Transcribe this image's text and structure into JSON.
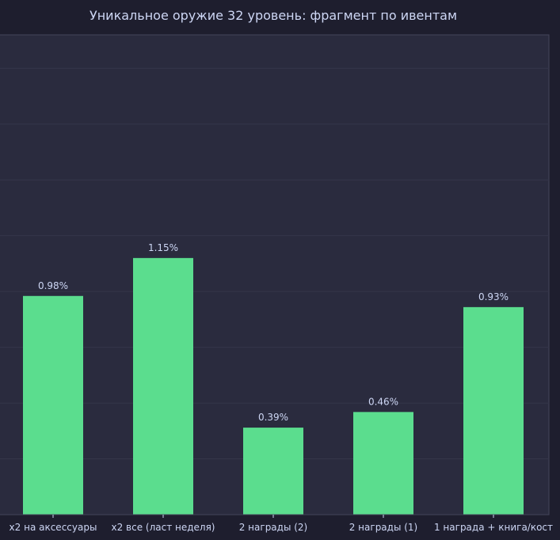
{
  "chart_data": {
    "type": "bar",
    "title": "Уникальное оружие 32 уровень: фрагмент по ивентам",
    "xlabel": "",
    "ylabel": "",
    "categories": [
      "x2 на аксессуары",
      "x2 все (ласт неделя)",
      "2 награды (2)",
      "2 награды (1)",
      "1 награда + книга/кост"
    ],
    "values": [
      0.98,
      1.15,
      0.39,
      0.46,
      0.93
    ],
    "data_labels": [
      "0.98%",
      "1.15%",
      "0.39%",
      "0.46%",
      "0.93%"
    ],
    "ylim": [
      0,
      2.15
    ],
    "grid": true,
    "legend": "none",
    "colors": {
      "background": "#1e1e2e",
      "plot_background": "#2a2b3e",
      "bar": "#5bdd8e",
      "grid": "#35364a",
      "spine": "#44455a",
      "text": "#cdd6f4"
    }
  }
}
